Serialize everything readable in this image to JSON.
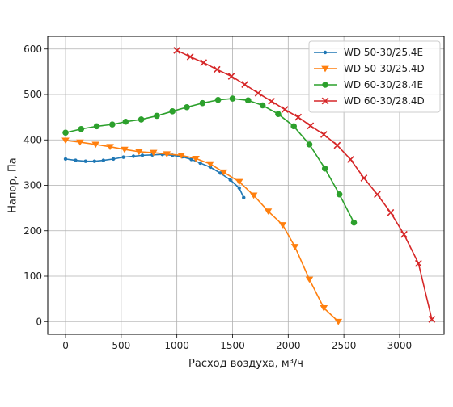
{
  "chart_data": {
    "type": "line",
    "title": "",
    "xlabel": "Расход воздуха, м³/ч",
    "ylabel": "Напор, Па",
    "xlim": [
      -160,
      3400
    ],
    "ylim": [
      -28,
      628
    ],
    "xticks": [
      0,
      500,
      1000,
      1500,
      2000,
      2500,
      3000
    ],
    "yticks": [
      0,
      100,
      200,
      300,
      400,
      500,
      600
    ],
    "grid": true,
    "legend_position": "top-right",
    "series": [
      {
        "name": "WD 50-30/25.4E",
        "color": "#1f77b4",
        "marker": "dot",
        "x": [
          0,
          90,
          180,
          260,
          340,
          430,
          520,
          610,
          690,
          780,
          870,
          960,
          1050,
          1130,
          1210,
          1300,
          1390,
          1480,
          1560,
          1600
        ],
        "y": [
          358,
          355,
          353,
          353,
          355,
          358,
          362,
          364,
          366,
          367,
          368,
          366,
          363,
          357,
          349,
          340,
          327,
          312,
          294,
          273
        ]
      },
      {
        "name": "WD 50-30/25.4D",
        "color": "#ff7f0e",
        "marker": "triangle-down",
        "x": [
          0,
          130,
          270,
          400,
          530,
          660,
          790,
          910,
          1040,
          1170,
          1300,
          1420,
          1560,
          1690,
          1820,
          1950,
          2060,
          2190,
          2320,
          2450
        ],
        "y": [
          399,
          395,
          390,
          385,
          379,
          374,
          372,
          369,
          366,
          359,
          347,
          329,
          308,
          278,
          243,
          213,
          165,
          93,
          30,
          0
        ]
      },
      {
        "name": "WD 60-30/28.4E",
        "color": "#2ca02c",
        "marker": "circle",
        "x": [
          0,
          140,
          280,
          420,
          540,
          680,
          820,
          960,
          1090,
          1230,
          1370,
          1500,
          1640,
          1770,
          1910,
          2050,
          2190,
          2330,
          2460,
          2590
        ],
        "y": [
          416,
          424,
          430,
          434,
          440,
          445,
          453,
          463,
          472,
          481,
          488,
          491,
          487,
          476,
          457,
          430,
          390,
          337,
          280,
          218
        ]
      },
      {
        "name": "WD 60-30/28.4D",
        "color": "#d62728",
        "marker": "x",
        "x": [
          1000,
          1120,
          1240,
          1360,
          1490,
          1610,
          1730,
          1850,
          1970,
          2090,
          2200,
          2320,
          2440,
          2560,
          2680,
          2800,
          2920,
          3040,
          3170,
          3290
        ],
        "y": [
          597,
          583,
          570,
          555,
          540,
          522,
          503,
          485,
          467,
          450,
          431,
          412,
          388,
          357,
          316,
          280,
          240,
          192,
          128,
          5
        ]
      }
    ]
  }
}
